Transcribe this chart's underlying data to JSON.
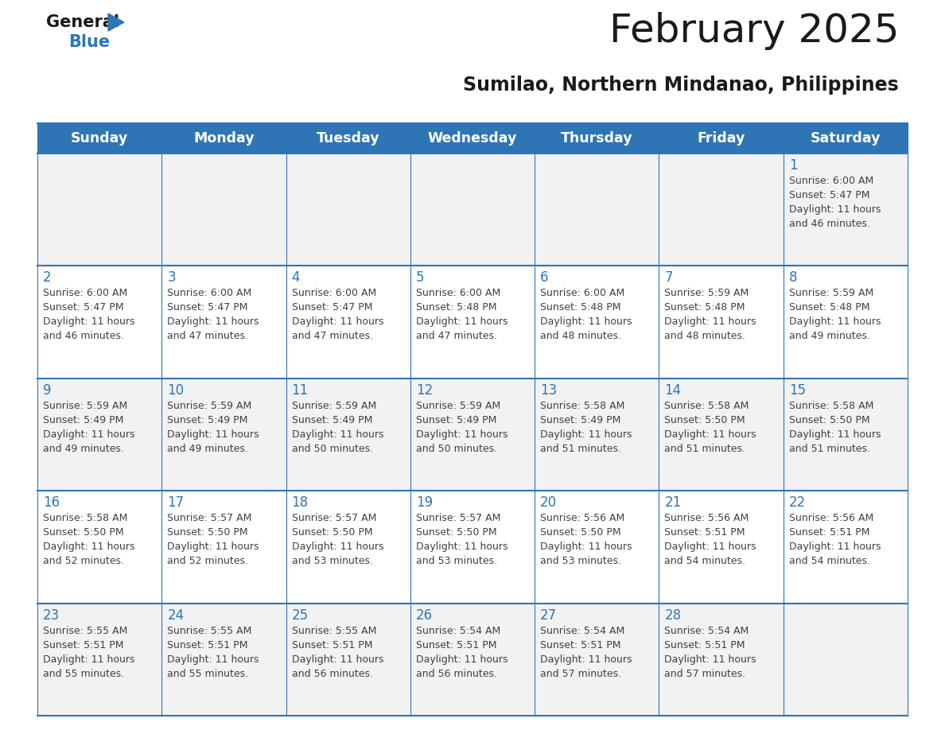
{
  "title": "February 2025",
  "subtitle": "Sumilao, Northern Mindanao, Philippines",
  "days_of_week": [
    "Sunday",
    "Monday",
    "Tuesday",
    "Wednesday",
    "Thursday",
    "Friday",
    "Saturday"
  ],
  "header_bg": "#2E75B6",
  "header_text": "#FFFFFF",
  "cell_bg_odd": "#F2F2F2",
  "cell_bg_even": "#FFFFFF",
  "cell_border": "#2E75B6",
  "day_number_color": "#2E75B6",
  "info_text_color": "#404040",
  "title_color": "#1a1a1a",
  "subtitle_color": "#1a1a1a",
  "logo_general_color": "#1a1a1a",
  "logo_blue_color": "#2E75B6",
  "logo_triangle_color": "#2E75B6",
  "calendar_data": [
    [
      null,
      null,
      null,
      null,
      null,
      null,
      {
        "day": 1,
        "sunrise": "6:00 AM",
        "sunset": "5:47 PM",
        "daylight": "11 hours and 46 minutes."
      }
    ],
    [
      {
        "day": 2,
        "sunrise": "6:00 AM",
        "sunset": "5:47 PM",
        "daylight": "11 hours and 46 minutes."
      },
      {
        "day": 3,
        "sunrise": "6:00 AM",
        "sunset": "5:47 PM",
        "daylight": "11 hours and 47 minutes."
      },
      {
        "day": 4,
        "sunrise": "6:00 AM",
        "sunset": "5:47 PM",
        "daylight": "11 hours and 47 minutes."
      },
      {
        "day": 5,
        "sunrise": "6:00 AM",
        "sunset": "5:48 PM",
        "daylight": "11 hours and 47 minutes."
      },
      {
        "day": 6,
        "sunrise": "6:00 AM",
        "sunset": "5:48 PM",
        "daylight": "11 hours and 48 minutes."
      },
      {
        "day": 7,
        "sunrise": "5:59 AM",
        "sunset": "5:48 PM",
        "daylight": "11 hours and 48 minutes."
      },
      {
        "day": 8,
        "sunrise": "5:59 AM",
        "sunset": "5:48 PM",
        "daylight": "11 hours and 49 minutes."
      }
    ],
    [
      {
        "day": 9,
        "sunrise": "5:59 AM",
        "sunset": "5:49 PM",
        "daylight": "11 hours and 49 minutes."
      },
      {
        "day": 10,
        "sunrise": "5:59 AM",
        "sunset": "5:49 PM",
        "daylight": "11 hours and 49 minutes."
      },
      {
        "day": 11,
        "sunrise": "5:59 AM",
        "sunset": "5:49 PM",
        "daylight": "11 hours and 50 minutes."
      },
      {
        "day": 12,
        "sunrise": "5:59 AM",
        "sunset": "5:49 PM",
        "daylight": "11 hours and 50 minutes."
      },
      {
        "day": 13,
        "sunrise": "5:58 AM",
        "sunset": "5:49 PM",
        "daylight": "11 hours and 51 minutes."
      },
      {
        "day": 14,
        "sunrise": "5:58 AM",
        "sunset": "5:50 PM",
        "daylight": "11 hours and 51 minutes."
      },
      {
        "day": 15,
        "sunrise": "5:58 AM",
        "sunset": "5:50 PM",
        "daylight": "11 hours and 51 minutes."
      }
    ],
    [
      {
        "day": 16,
        "sunrise": "5:58 AM",
        "sunset": "5:50 PM",
        "daylight": "11 hours and 52 minutes."
      },
      {
        "day": 17,
        "sunrise": "5:57 AM",
        "sunset": "5:50 PM",
        "daylight": "11 hours and 52 minutes."
      },
      {
        "day": 18,
        "sunrise": "5:57 AM",
        "sunset": "5:50 PM",
        "daylight": "11 hours and 53 minutes."
      },
      {
        "day": 19,
        "sunrise": "5:57 AM",
        "sunset": "5:50 PM",
        "daylight": "11 hours and 53 minutes."
      },
      {
        "day": 20,
        "sunrise": "5:56 AM",
        "sunset": "5:50 PM",
        "daylight": "11 hours and 53 minutes."
      },
      {
        "day": 21,
        "sunrise": "5:56 AM",
        "sunset": "5:51 PM",
        "daylight": "11 hours and 54 minutes."
      },
      {
        "day": 22,
        "sunrise": "5:56 AM",
        "sunset": "5:51 PM",
        "daylight": "11 hours and 54 minutes."
      }
    ],
    [
      {
        "day": 23,
        "sunrise": "5:55 AM",
        "sunset": "5:51 PM",
        "daylight": "11 hours and 55 minutes."
      },
      {
        "day": 24,
        "sunrise": "5:55 AM",
        "sunset": "5:51 PM",
        "daylight": "11 hours and 55 minutes."
      },
      {
        "day": 25,
        "sunrise": "5:55 AM",
        "sunset": "5:51 PM",
        "daylight": "11 hours and 56 minutes."
      },
      {
        "day": 26,
        "sunrise": "5:54 AM",
        "sunset": "5:51 PM",
        "daylight": "11 hours and 56 minutes."
      },
      {
        "day": 27,
        "sunrise": "5:54 AM",
        "sunset": "5:51 PM",
        "daylight": "11 hours and 57 minutes."
      },
      {
        "day": 28,
        "sunrise": "5:54 AM",
        "sunset": "5:51 PM",
        "daylight": "11 hours and 57 minutes."
      },
      null
    ]
  ]
}
